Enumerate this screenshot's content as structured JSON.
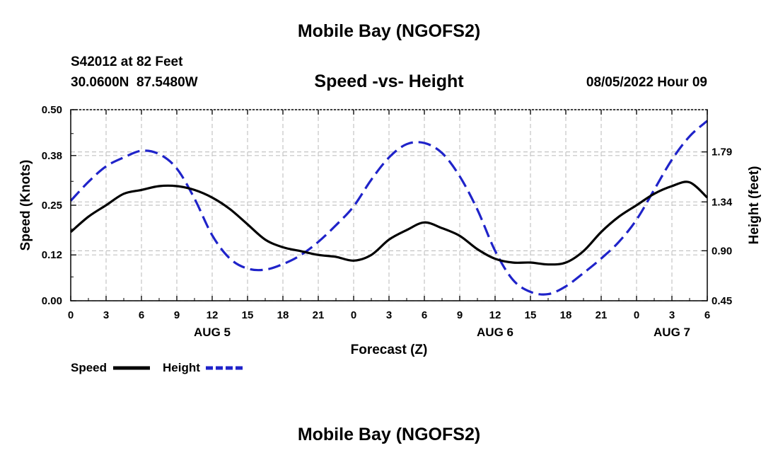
{
  "header": {
    "title": "Mobile Bay (NGOFS2)",
    "station": "S42012 at 82 Feet",
    "coords": "30.0600N  87.5480W",
    "subtitle": "Speed -vs- Height",
    "run_time": "08/05/2022 Hour 09"
  },
  "footer": {
    "title": "Mobile Bay (NGOFS2)"
  },
  "chart_data": {
    "type": "line",
    "title": "Speed -vs- Height",
    "xlabel": "Forecast (Z)",
    "ylabel": "Speed (Knots)",
    "y2label": "Height (feet)",
    "x_tick_labels": [
      "0",
      "3",
      "6",
      "9",
      "12",
      "15",
      "18",
      "21",
      "0",
      "3",
      "6",
      "9",
      "12",
      "15",
      "18",
      "21",
      "0",
      "3",
      "6"
    ],
    "day_labels": [
      {
        "label": "AUG 5",
        "hour": 12
      },
      {
        "label": "AUG 6",
        "hour": 36
      },
      {
        "label": "AUG 7",
        "hour": 51
      }
    ],
    "xlim": [
      0,
      54
    ],
    "ylim": [
      0,
      0.5
    ],
    "y_ticks": [
      "0.00",
      "0.12",
      "0.25",
      "0.38",
      "0.50"
    ],
    "y2lim": [
      0.45,
      2.17
    ],
    "y2_ticks": [
      "0.45",
      "0.90",
      "1.34",
      "1.79"
    ],
    "grid": true,
    "legend_placement": "bottom-left",
    "series": [
      {
        "name": "Speed",
        "axis": "left",
        "color": "#000000",
        "style": "solid",
        "x": [
          0,
          1.5,
          3,
          4.5,
          6,
          7.5,
          9,
          10.5,
          12,
          13.5,
          15,
          16.5,
          18,
          19.5,
          21,
          22.5,
          24,
          25.5,
          27,
          28.5,
          30,
          31.5,
          33,
          34.5,
          36,
          37.5,
          39,
          40.5,
          42,
          43.5,
          45,
          46.5,
          48,
          49.5,
          51,
          52.5,
          54
        ],
        "values": [
          0.18,
          0.22,
          0.25,
          0.28,
          0.29,
          0.3,
          0.3,
          0.29,
          0.27,
          0.24,
          0.2,
          0.16,
          0.14,
          0.13,
          0.12,
          0.115,
          0.105,
          0.12,
          0.16,
          0.185,
          0.205,
          0.19,
          0.17,
          0.135,
          0.11,
          0.1,
          0.1,
          0.095,
          0.1,
          0.13,
          0.18,
          0.22,
          0.25,
          0.28,
          0.3,
          0.31,
          0.27
        ]
      },
      {
        "name": "Height",
        "axis": "right",
        "color": "#1f23c9",
        "style": "dashed",
        "x": [
          0,
          1.5,
          3,
          4.5,
          6,
          7.5,
          9,
          10.5,
          12,
          13.5,
          15,
          16.5,
          18,
          19.5,
          21,
          22.5,
          24,
          25.5,
          27,
          28.5,
          30,
          31.5,
          33,
          34.5,
          36,
          37.5,
          39,
          40.5,
          42,
          43.5,
          45,
          46.5,
          48,
          49.5,
          51,
          52.5,
          54
        ],
        "values": [
          1.35,
          1.52,
          1.66,
          1.74,
          1.8,
          1.77,
          1.64,
          1.37,
          1.04,
          0.83,
          0.74,
          0.73,
          0.78,
          0.86,
          0.98,
          1.13,
          1.3,
          1.54,
          1.74,
          1.86,
          1.87,
          1.78,
          1.57,
          1.27,
          0.9,
          0.64,
          0.53,
          0.51,
          0.58,
          0.7,
          0.83,
          0.98,
          1.18,
          1.45,
          1.72,
          1.93,
          2.07
        ]
      }
    ]
  }
}
